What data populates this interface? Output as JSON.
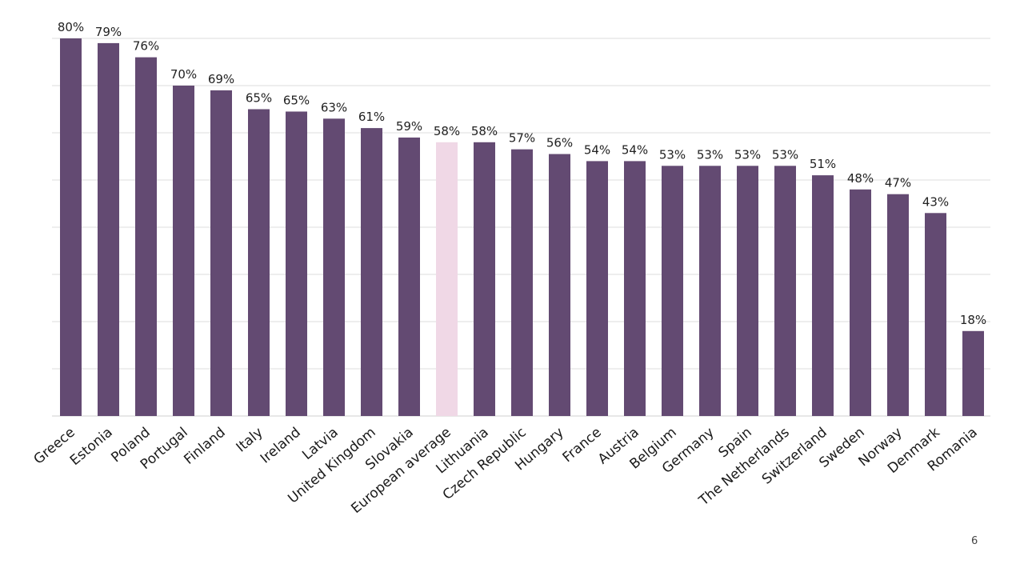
{
  "chart_data": {
    "type": "bar",
    "categories": [
      "Greece",
      "Estonia",
      "Poland",
      "Portugal",
      "Finland",
      "Italy",
      "Ireland",
      "Latvia",
      "United Kingdom",
      "Slovakia",
      "European average",
      "Lithuania",
      "Czech Republic",
      "Hungary",
      "France",
      "Austria",
      "Belgium",
      "Germany",
      "Spain",
      "The Netherlands",
      "Switzerland",
      "Sweden",
      "Norway",
      "Denmark",
      "Romania"
    ],
    "values": [
      80,
      79,
      76,
      70,
      69,
      65,
      64.5,
      63,
      61,
      59,
      58,
      58,
      56.5,
      55.5,
      54,
      54,
      53,
      53,
      53,
      53,
      51,
      48,
      47,
      43,
      18
    ],
    "labels": [
      "80%",
      "79%",
      "76%",
      "70%",
      "69%",
      "65%",
      "65%",
      "63%",
      "61%",
      "59%",
      "58%",
      "58%",
      "57%",
      "56%",
      "54%",
      "54%",
      "53%",
      "53%",
      "53%",
      "53%",
      "51%",
      "48%",
      "47%",
      "43%",
      "18%"
    ],
    "highlight_category": "European average",
    "ylim": [
      0,
      80
    ],
    "grid": true,
    "colors": {
      "bar": "#634a72",
      "highlight": "#f0d8e6"
    }
  },
  "page_number": "6"
}
